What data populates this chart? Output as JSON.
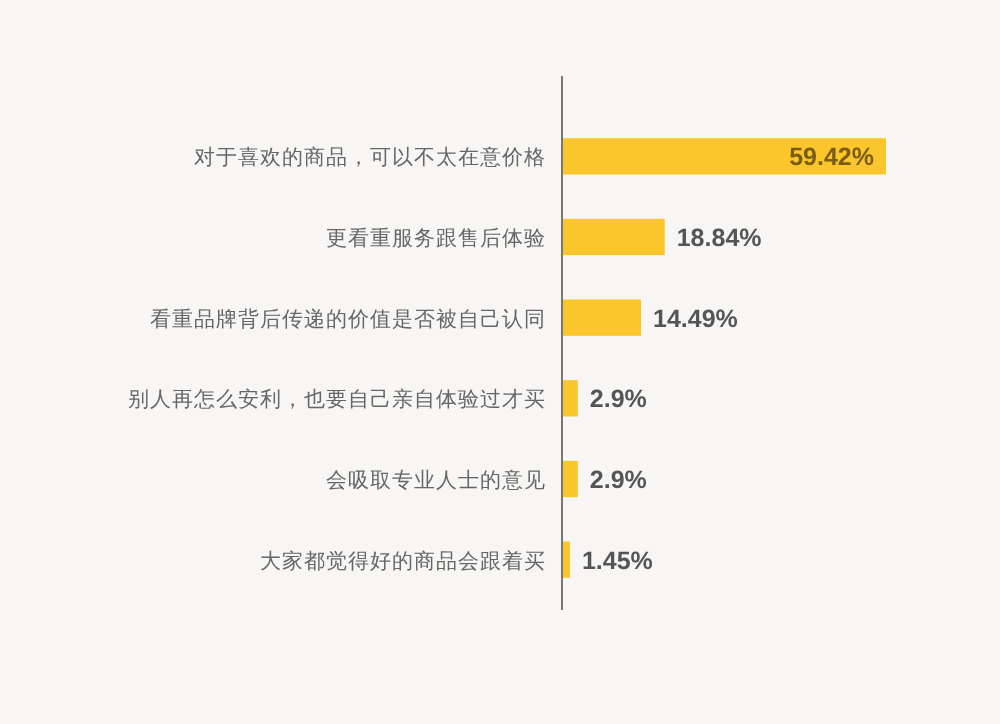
{
  "chart_data": {
    "type": "bar",
    "orientation": "horizontal",
    "color": "#fbc52c",
    "categories": [
      "对于喜欢的商品，可以不太在意价格",
      "更看重服务跟售后体验",
      "看重品牌背后传递的价值是否被自己认同",
      "别人再怎么安利，也要自己亲自体验过才买",
      "会吸取专业人士的意见",
      "大家都觉得好的商品会跟着买"
    ],
    "values": [
      59.42,
      18.84,
      14.49,
      2.9,
      2.9,
      1.45
    ],
    "value_labels": [
      "59.42%",
      "18.84%",
      "14.49%",
      "2.9%",
      "2.9%",
      "1.45%"
    ]
  }
}
